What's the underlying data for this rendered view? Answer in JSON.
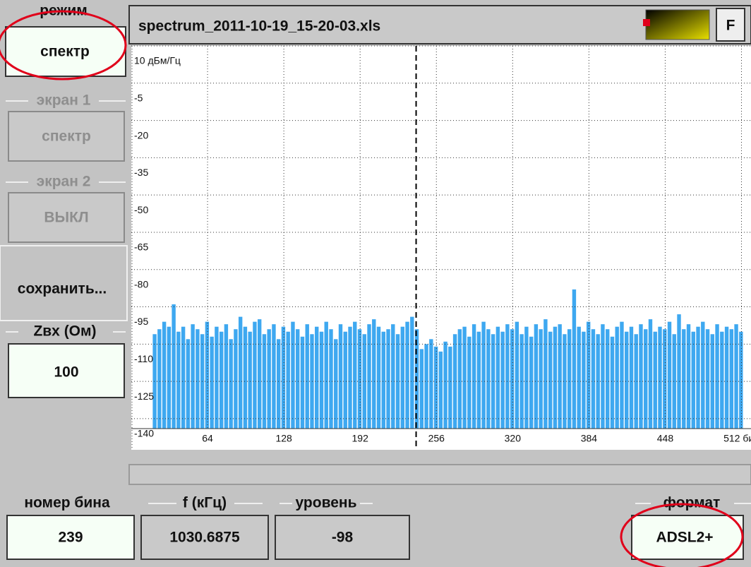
{
  "sidebar": {
    "mode": {
      "label": "режим",
      "value": "спектр"
    },
    "screen1": {
      "label": "экран 1",
      "value": "спектр"
    },
    "screen2": {
      "label": "экран 2",
      "value": "ВЫКЛ"
    },
    "save": "сохранить...",
    "impedance": {
      "label": "Zвх (Ом)",
      "value": "100"
    }
  },
  "header": {
    "filename": "spectrum_2011-10-19_15-20-03.xls",
    "button": "F"
  },
  "chart_data": {
    "type": "bar",
    "color": "#3ea8f0",
    "x": [
      20,
      24,
      28,
      32,
      36,
      40,
      44,
      48,
      52,
      56,
      60,
      64,
      68,
      72,
      76,
      80,
      84,
      88,
      92,
      96,
      100,
      104,
      108,
      112,
      116,
      120,
      124,
      128,
      132,
      136,
      140,
      144,
      148,
      152,
      156,
      160,
      164,
      168,
      172,
      176,
      180,
      184,
      188,
      192,
      196,
      200,
      204,
      208,
      212,
      216,
      220,
      224,
      228,
      232,
      236,
      240,
      244,
      248,
      252,
      256,
      260,
      264,
      268,
      272,
      276,
      280,
      284,
      288,
      292,
      296,
      300,
      304,
      308,
      312,
      316,
      320,
      324,
      328,
      332,
      336,
      340,
      344,
      348,
      352,
      356,
      360,
      364,
      368,
      372,
      376,
      380,
      384,
      388,
      392,
      396,
      400,
      404,
      408,
      412,
      416,
      420,
      424,
      428,
      432,
      436,
      440,
      444,
      448,
      452,
      456,
      460,
      464,
      468,
      472,
      476,
      480,
      484,
      488,
      492,
      496,
      500,
      504,
      508,
      512
    ],
    "values": [
      -106,
      -104,
      -101,
      -103,
      -94,
      -105,
      -103,
      -108,
      -102,
      -104,
      -106,
      -101,
      -107,
      -103,
      -105,
      -102,
      -108,
      -104,
      -99,
      -103,
      -105,
      -101,
      -100,
      -106,
      -104,
      -102,
      -108,
      -103,
      -105,
      -101,
      -104,
      -107,
      -102,
      -106,
      -103,
      -105,
      -101,
      -104,
      -108,
      -102,
      -105,
      -103,
      -101,
      -104,
      -106,
      -102,
      -100,
      -103,
      -105,
      -104,
      -102,
      -106,
      -103,
      -101,
      -99,
      -104,
      -112,
      -110,
      -108,
      -111,
      -113,
      -109,
      -111,
      -106,
      -104,
      -103,
      -107,
      -102,
      -105,
      -101,
      -104,
      -106,
      -103,
      -105,
      -102,
      -104,
      -101,
      -106,
      -103,
      -107,
      -102,
      -104,
      -100,
      -105,
      -103,
      -102,
      -106,
      -104,
      -88,
      -103,
      -105,
      -101,
      -104,
      -106,
      -102,
      -104,
      -107,
      -103,
      -101,
      -105,
      -103,
      -106,
      -102,
      -104,
      -100,
      -105,
      -103,
      -104,
      -101,
      -106,
      -98,
      -104,
      -102,
      -105,
      -103,
      -101,
      -104,
      -106,
      -102,
      -105,
      -103,
      -104,
      -102,
      -105
    ],
    "xlim": [
      0,
      520
    ],
    "xticks": [
      64,
      128,
      192,
      256,
      320,
      384,
      448,
      {
        "value": 512,
        "label": "512 бин"
      }
    ],
    "ylim": [
      -144,
      10
    ],
    "yticks": [
      {
        "value": 10,
        "label": "10 дБм/Гц"
      },
      -5,
      -20,
      -35,
      -50,
      -65,
      -80,
      -95,
      -110,
      -125,
      -140
    ],
    "grid": true,
    "cursor_x": 239
  },
  "bottom": {
    "bin": {
      "label": "номер бина",
      "value": "239"
    },
    "freq": {
      "label": "f (кГц)",
      "value": "1030.6875"
    },
    "level": {
      "label": "уровень",
      "value": "-98"
    },
    "format": {
      "label": "формат",
      "value": "ADSL2+"
    }
  }
}
